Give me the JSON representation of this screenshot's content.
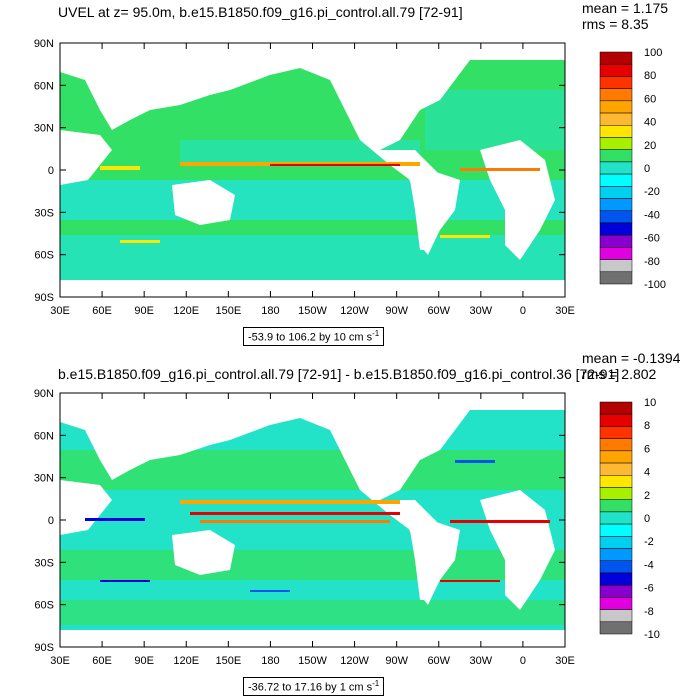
{
  "panels": [
    {
      "title": "UVEL at z=  95.0m, b.e15.B1850.f09_g16.pi_control.all.79 [72-91]",
      "mean_text": "mean = 1.175",
      "rms_text": "rms = 8.35",
      "range_text": "-53.9 to 106.2 by 10 cm s",
      "range_sup": "-1",
      "colorbar_labels": [
        "100",
        "80",
        "60",
        "40",
        "20",
        "0",
        "-20",
        "-40",
        "-60",
        "-80",
        "-100"
      ]
    },
    {
      "title": "b.e15.B1850.f09_g16.pi_control.all.79 [72-91] - b.e15.B1850.f09_g16.pi_control.36 [72-91]",
      "mean_text": "mean = -0.1394",
      "rms_text": "rms = 2.802",
      "range_text": "-36.72 to 17.16 by 1 cm s",
      "range_sup": "-1",
      "colorbar_labels": [
        "10",
        "8",
        "6",
        "4",
        "2",
        "0",
        "-2",
        "-4",
        "-6",
        "-8",
        "-10"
      ]
    }
  ],
  "axes": {
    "x_ticks": [
      "30E",
      "60E",
      "90E",
      "120E",
      "150E",
      "180",
      "150W",
      "120W",
      "90W",
      "60W",
      "30W",
      "0",
      "30E"
    ],
    "y_ticks": [
      "90N",
      "60N",
      "30N",
      "0",
      "30S",
      "60S",
      "90S"
    ]
  },
  "colors": {
    "ocean": "#33e066",
    "land": "#ffffff",
    "cyan": "#22e3c8",
    "colorbar": [
      "#b30000",
      "#e60000",
      "#ff3300",
      "#ff7a00",
      "#ffa500",
      "#ffb833",
      "#ffe600",
      "#a6f000",
      "#33e066",
      "#22e3c8",
      "#00ffff",
      "#00d0f0",
      "#0099ff",
      "#0055ee",
      "#0000dd",
      "#8800cc",
      "#e000e0",
      "#c8c8c8",
      "#707070"
    ]
  }
}
